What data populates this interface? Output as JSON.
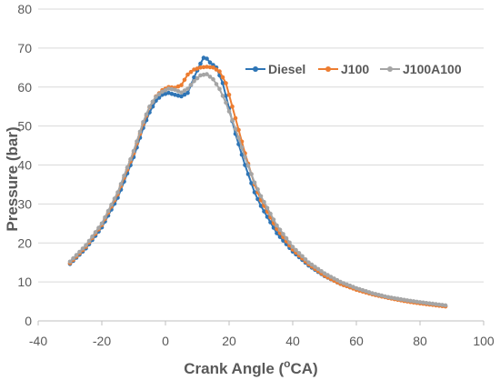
{
  "chart_data": {
    "type": "line",
    "title": "",
    "xlabel": "Crank Angle (",
    "xlabel_sup": "o",
    "xlabel_end": "CA)",
    "ylabel": "Pressure (bar)",
    "xlim": [
      -40,
      100
    ],
    "ylim": [
      0,
      80
    ],
    "x_ticks": [
      "-40",
      "-20",
      "0",
      "20",
      "40",
      "60",
      "80",
      "100"
    ],
    "y_ticks": [
      "0",
      "10",
      "20",
      "30",
      "40",
      "50",
      "60",
      "70",
      "80"
    ],
    "grid": "horizontal",
    "legend": "top-right",
    "series": [
      {
        "name": "Diesel",
        "color": "#2E75B6",
        "points": [
          [
            -30,
            14.6
          ],
          [
            -25,
            18.6
          ],
          [
            -20,
            24
          ],
          [
            -15,
            31.6
          ],
          [
            -10,
            42
          ],
          [
            -7,
            49.5
          ],
          [
            -5,
            53.5
          ],
          [
            -3,
            56.5
          ],
          [
            -1,
            58
          ],
          [
            1,
            58.5
          ],
          [
            3,
            58
          ],
          [
            5,
            57.6
          ],
          [
            7,
            58.5
          ],
          [
            9,
            62.5
          ],
          [
            11,
            66
          ],
          [
            12,
            67.5
          ],
          [
            13,
            67.3
          ],
          [
            14,
            66.3
          ],
          [
            16,
            65
          ],
          [
            18,
            61
          ],
          [
            20,
            54.5
          ],
          [
            22,
            48
          ],
          [
            25,
            40
          ],
          [
            28,
            33
          ],
          [
            30,
            29.5
          ],
          [
            35,
            22.5
          ],
          [
            40,
            17.8
          ],
          [
            45,
            14.2
          ],
          [
            50,
            11.5
          ],
          [
            55,
            9.5
          ],
          [
            60,
            8.1
          ],
          [
            65,
            6.9
          ],
          [
            70,
            6
          ],
          [
            75,
            5.2
          ],
          [
            80,
            4.6
          ],
          [
            85,
            4.1
          ],
          [
            88,
            3.8
          ]
        ]
      },
      {
        "name": "J100",
        "color": "#ED7D31",
        "points": [
          [
            -30,
            14.8
          ],
          [
            -25,
            19
          ],
          [
            -20,
            24.6
          ],
          [
            -15,
            32.5
          ],
          [
            -10,
            43
          ],
          [
            -7,
            50.5
          ],
          [
            -5,
            54.8
          ],
          [
            -3,
            57.6
          ],
          [
            -1,
            59.2
          ],
          [
            1,
            60
          ],
          [
            3,
            59.8
          ],
          [
            5,
            60.5
          ],
          [
            7,
            63.2
          ],
          [
            9,
            64.5
          ],
          [
            11,
            65
          ],
          [
            13,
            65.2
          ],
          [
            15,
            65
          ],
          [
            17,
            64
          ],
          [
            19,
            61
          ],
          [
            21,
            55
          ],
          [
            23,
            49
          ],
          [
            25,
            43
          ],
          [
            28,
            35
          ],
          [
            30,
            31
          ],
          [
            35,
            23.6
          ],
          [
            40,
            18.3
          ],
          [
            45,
            14.5
          ],
          [
            50,
            11.6
          ],
          [
            55,
            9.5
          ],
          [
            60,
            8
          ],
          [
            65,
            6.8
          ],
          [
            70,
            5.9
          ],
          [
            75,
            5.1
          ],
          [
            80,
            4.5
          ],
          [
            85,
            4
          ],
          [
            88,
            3.7
          ]
        ]
      },
      {
        "name": "J100A100",
        "color": "#A5A5A5",
        "points": [
          [
            -30,
            15.2
          ],
          [
            -25,
            19.4
          ],
          [
            -20,
            25
          ],
          [
            -15,
            33
          ],
          [
            -10,
            43.6
          ],
          [
            -7,
            51
          ],
          [
            -5,
            55
          ],
          [
            -3,
            57.5
          ],
          [
            -1,
            58.8
          ],
          [
            1,
            59.6
          ],
          [
            3,
            59.3
          ],
          [
            5,
            58.6
          ],
          [
            7,
            59.6
          ],
          [
            9,
            61.5
          ],
          [
            11,
            63
          ],
          [
            13,
            63.3
          ],
          [
            15,
            62
          ],
          [
            17,
            59.5
          ],
          [
            19,
            56
          ],
          [
            21,
            51.5
          ],
          [
            23,
            47
          ],
          [
            25,
            42
          ],
          [
            28,
            35.5
          ],
          [
            30,
            32
          ],
          [
            35,
            24.5
          ],
          [
            40,
            19
          ],
          [
            45,
            15
          ],
          [
            50,
            12.2
          ],
          [
            55,
            10
          ],
          [
            60,
            8.4
          ],
          [
            65,
            7.1
          ],
          [
            70,
            6.1
          ],
          [
            75,
            5.4
          ],
          [
            80,
            4.8
          ],
          [
            85,
            4.3
          ],
          [
            88,
            4
          ]
        ]
      }
    ]
  }
}
